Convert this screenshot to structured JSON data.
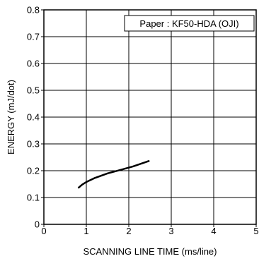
{
  "chart_data": {
    "type": "line",
    "xlabel": "SCANNING  LINE  TIME (ms/line)",
    "ylabel": "ENERGY (mJ/dot)",
    "xlim": [
      0,
      5
    ],
    "ylim": [
      0,
      0.8
    ],
    "x_ticks": [
      "0",
      "1",
      "2",
      "3",
      "4",
      "5"
    ],
    "y_ticks": [
      "0",
      "0.1",
      "0.2",
      "0.3",
      "0.4",
      "0.5",
      "0.6",
      "0.7",
      "0.8"
    ],
    "grid": true,
    "annotation": "Paper : KF50-HDA (OJI)",
    "series": [
      {
        "x": [
          0.82,
          0.9,
          1.0,
          1.2,
          1.5,
          1.8,
          2.1,
          2.47
        ],
        "y": [
          0.137,
          0.148,
          0.158,
          0.173,
          0.19,
          0.203,
          0.216,
          0.236
        ]
      }
    ]
  }
}
